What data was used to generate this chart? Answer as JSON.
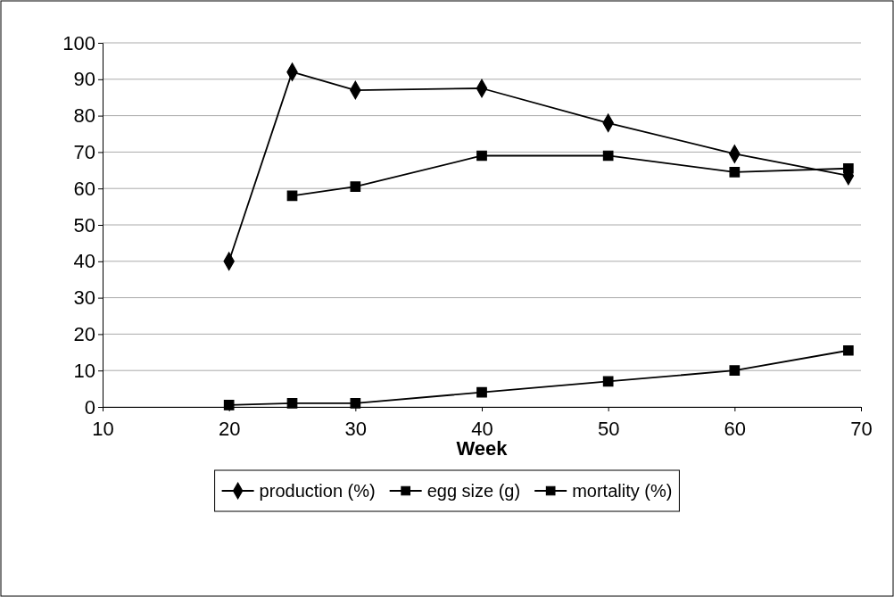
{
  "chart_data": {
    "type": "line",
    "xlabel": "Week",
    "xlim": [
      10,
      70
    ],
    "xticks": [
      10,
      20,
      30,
      40,
      50,
      60,
      70
    ],
    "ylim": [
      0,
      100
    ],
    "yticks": [
      0,
      10,
      20,
      30,
      40,
      50,
      60,
      70,
      80,
      90,
      100
    ],
    "grid": "y",
    "legend": "bottom",
    "series": [
      {
        "name": "production (%)",
        "color": "#000000",
        "marker": "diamond",
        "x": [
          20,
          25,
          30,
          40,
          50,
          60,
          69
        ],
        "values": [
          40,
          92,
          87,
          87.5,
          78,
          69.5,
          63.5
        ]
      },
      {
        "name": "egg size (g)",
        "color": "#000000",
        "marker": "square",
        "x": [
          25,
          30,
          40,
          50,
          60,
          69
        ],
        "values": [
          58,
          60.5,
          69,
          69,
          64.5,
          65.5
        ]
      },
      {
        "name": "mortality (%)",
        "color": "#000000",
        "marker": "square",
        "x": [
          20,
          25,
          30,
          40,
          50,
          60,
          69
        ],
        "values": [
          0.5,
          1,
          1,
          4,
          7,
          10,
          15.5
        ]
      }
    ]
  }
}
